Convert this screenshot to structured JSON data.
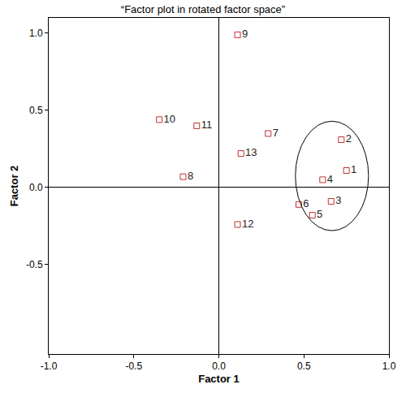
{
  "chart_data": {
    "type": "scatter",
    "title": "“Factor plot in rotated factor space”",
    "x_label": "Factor 1",
    "y_label": "Factor 2",
    "labels": [
      "1",
      "2",
      "3",
      "4",
      "5",
      "6",
      "7",
      "8",
      "9",
      "10",
      "11",
      "12",
      "13"
    ],
    "x": [
      0.75,
      0.72,
      0.66,
      0.61,
      0.55,
      0.47,
      0.29,
      -0.21,
      0.11,
      -0.35,
      -0.13,
      0.11,
      0.13
    ],
    "values": [
      0.11,
      0.31,
      -0.09,
      0.05,
      -0.18,
      -0.11,
      0.35,
      0.07,
      0.99,
      0.44,
      0.4,
      -0.24,
      0.22
    ],
    "color": "#c03030",
    "marker": "square-open",
    "xlim": [
      -1.0,
      1.0
    ],
    "ylim": [
      -1.08,
      1.1
    ],
    "xticks": [
      {
        "value": -1,
        "label": "-1.0"
      },
      {
        "value": -0.5,
        "label": "-0.5"
      },
      {
        "value": 0,
        "label": "0.0"
      },
      {
        "value": 0.5,
        "label": "0.5"
      },
      {
        "value": 1,
        "label": "1.0"
      }
    ],
    "yticks": [
      {
        "value": -0.5,
        "label": "-0.5"
      },
      {
        "value": 0,
        "label": "0.0"
      },
      {
        "value": 0.5,
        "label": "0.5"
      },
      {
        "value": 1,
        "label": "1.0"
      }
    ],
    "grid": false,
    "ellipse": {
      "x": [
        0.45,
        0.88
      ],
      "y": [
        -0.28,
        0.43
      ]
    }
  }
}
